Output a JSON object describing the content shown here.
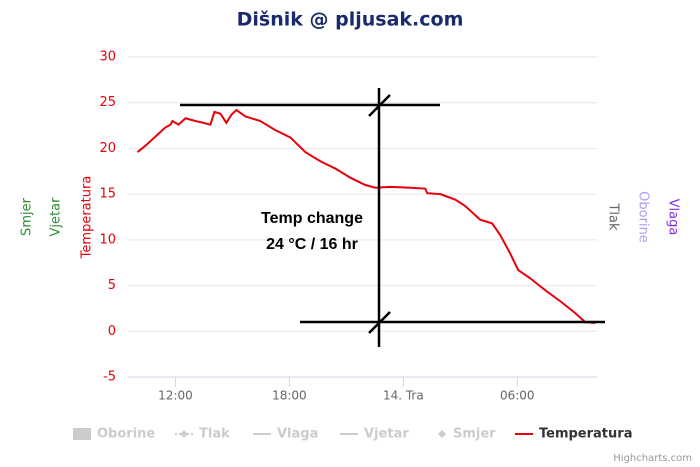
{
  "chart_data": {
    "type": "line",
    "title": "Dišnik @ pljusak.com",
    "x": [
      10.0,
      10.42,
      10.95,
      11.47,
      11.74,
      11.84,
      12.16,
      12.53,
      13.05,
      13.47,
      13.84,
      14.05,
      14.37,
      14.68,
      14.95,
      15.21,
      15.68,
      16.47,
      17.26,
      18.05,
      18.84,
      19.63,
      20.42,
      21.21,
      22.0,
      22.53,
      23.32,
      24.37,
      25.16,
      25.26,
      25.95,
      26.74,
      27.26,
      28.05,
      28.68,
      29.11,
      29.63,
      30.05,
      30.68,
      31.47,
      32.26,
      33.05,
      33.58,
      34.11
    ],
    "series": [
      {
        "name": "Oborine",
        "visible": false
      },
      {
        "name": "Tlak",
        "visible": false
      },
      {
        "name": "Vlaga",
        "visible": false
      },
      {
        "name": "Vjetar",
        "visible": false
      },
      {
        "name": "Smjer",
        "visible": false
      },
      {
        "name": "Temperatura",
        "color": "#e8000b",
        "visible": true,
        "values": [
          19.6,
          20.3,
          21.3,
          22.3,
          22.6,
          23.0,
          22.6,
          23.3,
          23.0,
          22.8,
          22.6,
          24.0,
          23.8,
          22.8,
          23.7,
          24.2,
          23.5,
          23.0,
          22.0,
          21.2,
          19.6,
          18.6,
          17.8,
          16.8,
          16.0,
          15.7,
          15.8,
          15.7,
          15.6,
          15.1,
          15.0,
          14.4,
          13.7,
          12.2,
          11.8,
          10.5,
          8.5,
          6.7,
          5.8,
          4.5,
          3.3,
          2.0,
          1.0,
          0.9
        ]
      }
    ],
    "xlim": [
      9.5,
      34.2
    ],
    "xticks": [
      {
        "value": 12,
        "label": "12:00"
      },
      {
        "value": 18,
        "label": "18:00"
      },
      {
        "value": 24,
        "label": "14. Tra"
      },
      {
        "value": 30,
        "label": "06:00"
      }
    ],
    "ylim": [
      -5,
      30
    ],
    "yticks": [
      -5,
      0,
      5,
      10,
      15,
      20,
      25,
      30
    ],
    "grid": true,
    "left_axis_titles": [
      {
        "text": "Smjer",
        "color": "#2e8b2e"
      },
      {
        "text": "Vjetar",
        "color": "#2e8b2e"
      },
      {
        "text": "Temperatura",
        "color": "#e8000b"
      }
    ],
    "right_axis_titles": [
      {
        "text": "Tlak",
        "color": "#666666"
      },
      {
        "text": "Oborine",
        "color": "#a8a0f0"
      },
      {
        "text": "Vlaga",
        "color": "#8a2be2"
      }
    ],
    "annotation": [
      "Temp change",
      "24 °C / 16 hr"
    ],
    "credit": "Highcharts.com"
  }
}
